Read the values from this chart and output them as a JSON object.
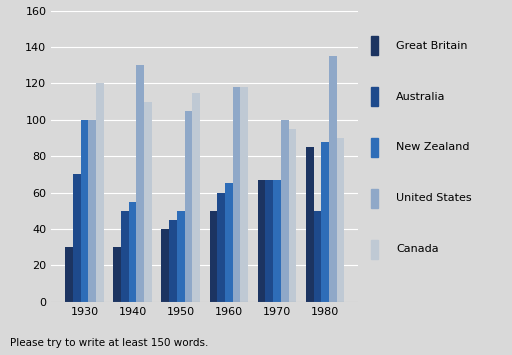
{
  "years": [
    1930,
    1940,
    1950,
    1960,
    1970,
    1980
  ],
  "series": {
    "Great Britain": [
      30,
      30,
      40,
      50,
      67,
      85
    ],
    "Australia": [
      70,
      50,
      45,
      60,
      67,
      50
    ],
    "New Zealand": [
      100,
      55,
      50,
      65,
      67,
      88
    ],
    "United States": [
      100,
      130,
      105,
      118,
      100,
      135
    ],
    "Canada": [
      120,
      110,
      115,
      118,
      95,
      90
    ]
  },
  "bar_colors": {
    "Great Britain": "#1c3461",
    "Australia": "#1e4a8c",
    "New Zealand": "#2e6db8",
    "United States": "#8fa8c8",
    "Canada": "#bfc9d4"
  },
  "legend_marker_colors": {
    "Great Britain": "#1c3461",
    "Australia": "#1e4a8c",
    "New Zealand": "#2e6db8",
    "United States": "#8fa8c8",
    "Canada": "#bfc9d4"
  },
  "ylim": [
    0,
    160
  ],
  "yticks": [
    0,
    20,
    40,
    60,
    80,
    100,
    120,
    140,
    160
  ],
  "background_color": "#d9d9d9",
  "grid_color": "#ffffff",
  "footer_text": "Please try to write at least 150 words.",
  "footer_fontsize": 7.5,
  "tick_fontsize": 8,
  "legend_fontsize": 8
}
